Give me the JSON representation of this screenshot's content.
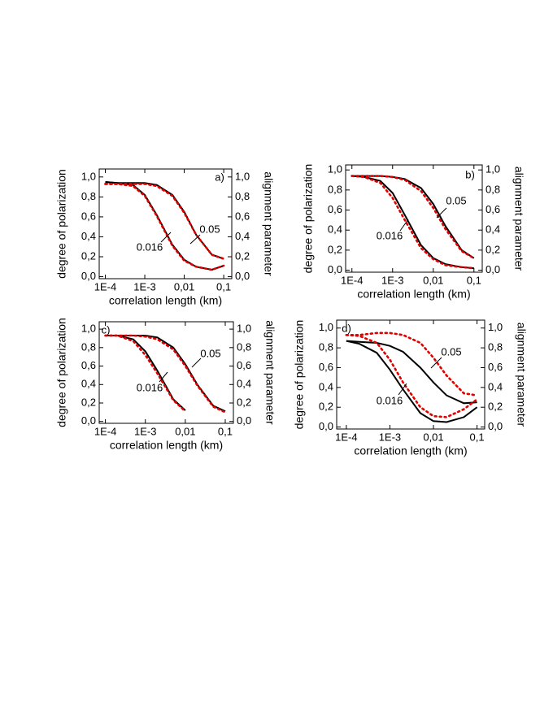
{
  "chart_data": [
    {
      "type": "line",
      "panel_label": "a)",
      "curve_labels": [
        "0.05",
        "0.016"
      ],
      "xlabel": "correlation length (km)",
      "ylabel": "degree of polarization",
      "y2label": "alignment parameter",
      "xscale": "log",
      "x": [
        0.0001,
        0.0002,
        0.0005,
        0.001,
        0.002,
        0.005,
        0.01,
        0.02,
        0.05,
        0.1
      ],
      "xlim": [
        7e-05,
        0.16
      ],
      "xticks": [
        {
          "value": 0.0001,
          "label": "1E-4"
        },
        {
          "value": 0.001,
          "label": "1E-3"
        },
        {
          "value": 0.01,
          "label": "0,01"
        },
        {
          "value": 0.1,
          "label": "0,1"
        }
      ],
      "ylim": [
        -0.02,
        1.08
      ],
      "yticks": [
        {
          "value": 0,
          "label": "0,0"
        },
        {
          "value": 0.2,
          "label": "0,2"
        },
        {
          "value": 0.4,
          "label": "0,4"
        },
        {
          "value": 0.6,
          "label": "0,6"
        },
        {
          "value": 0.8,
          "label": "0,8"
        },
        {
          "value": 1,
          "label": "1,0"
        }
      ],
      "y2lim": [
        -0.02,
        1.08
      ],
      "y2ticks": [
        {
          "value": 0,
          "label": "0,0"
        },
        {
          "value": 0.2,
          "label": "0,2"
        },
        {
          "value": 0.4,
          "label": "0,4"
        },
        {
          "value": 0.6,
          "label": "0,6"
        },
        {
          "value": 0.8,
          "label": "0,8"
        },
        {
          "value": 1,
          "label": "1,0"
        }
      ],
      "series": [
        {
          "color": "#000000",
          "style": "solid",
          "values": [
            0.95,
            0.94,
            0.94,
            0.94,
            0.92,
            0.82,
            0.65,
            0.42,
            0.22,
            0.18
          ]
        },
        {
          "color": "#000000",
          "style": "solid",
          "values": [
            0.95,
            0.94,
            0.92,
            0.82,
            0.62,
            0.32,
            0.17,
            0.1,
            0.07,
            0.11
          ]
        },
        {
          "color": "#e00000",
          "style": "dotted",
          "axis": "y2",
          "values": [
            0.93,
            0.93,
            0.93,
            0.93,
            0.91,
            0.81,
            0.64,
            0.42,
            0.22,
            0.18
          ]
        },
        {
          "color": "#e00000",
          "style": "dotted",
          "axis": "y2",
          "values": [
            0.93,
            0.93,
            0.91,
            0.81,
            0.61,
            0.31,
            0.16,
            0.1,
            0.07,
            0.11
          ]
        }
      ]
    },
    {
      "type": "line",
      "panel_label": "b)",
      "curve_labels": [
        "0.05",
        "0.016"
      ],
      "xlabel": "correlation length (km)",
      "ylabel": "degree of polarization",
      "y2label": "alignment parameter",
      "xscale": "log",
      "x": [
        0.0001,
        0.0002,
        0.0005,
        0.001,
        0.002,
        0.005,
        0.01,
        0.02,
        0.05,
        0.1
      ],
      "xlim": [
        7e-05,
        0.16
      ],
      "xticks": [
        {
          "value": 0.0001,
          "label": "1E-4"
        },
        {
          "value": 0.001,
          "label": "1E-3"
        },
        {
          "value": 0.01,
          "label": "0,01"
        },
        {
          "value": 0.1,
          "label": "0,1"
        }
      ],
      "ylim": [
        -0.02,
        1.05
      ],
      "yticks": [
        {
          "value": 0,
          "label": "0,0"
        },
        {
          "value": 0.2,
          "label": "0,2"
        },
        {
          "value": 0.4,
          "label": "0,4"
        },
        {
          "value": 0.6,
          "label": "0,6"
        },
        {
          "value": 0.8,
          "label": "0,8"
        },
        {
          "value": 1,
          "label": "1,0"
        }
      ],
      "y2lim": [
        -0.02,
        1.05
      ],
      "y2ticks": [
        {
          "value": 0,
          "label": "0,0"
        },
        {
          "value": 0.2,
          "label": "0,2"
        },
        {
          "value": 0.4,
          "label": "0,4"
        },
        {
          "value": 0.6,
          "label": "0,6"
        },
        {
          "value": 0.8,
          "label": "0,8"
        },
        {
          "value": 1,
          "label": "1,0"
        }
      ],
      "series": [
        {
          "color": "#000000",
          "style": "solid",
          "values": [
            0.94,
            0.94,
            0.94,
            0.93,
            0.91,
            0.82,
            0.66,
            0.44,
            0.2,
            0.12
          ]
        },
        {
          "color": "#000000",
          "style": "solid",
          "values": [
            0.94,
            0.93,
            0.89,
            0.77,
            0.55,
            0.25,
            0.12,
            0.06,
            0.03,
            0.02
          ]
        },
        {
          "color": "#e00000",
          "style": "dotted",
          "axis": "y2",
          "values": [
            0.94,
            0.94,
            0.94,
            0.93,
            0.9,
            0.79,
            0.62,
            0.41,
            0.19,
            0.12
          ]
        },
        {
          "color": "#e00000",
          "style": "dotted",
          "axis": "y2",
          "values": [
            0.94,
            0.93,
            0.87,
            0.72,
            0.5,
            0.22,
            0.11,
            0.05,
            0.03,
            0.02
          ]
        }
      ]
    },
    {
      "type": "line",
      "panel_label": "c)",
      "curve_labels": [
        "0.05",
        "0.016"
      ],
      "xlabel": "correlation length (km)",
      "ylabel": "degree of polarization",
      "y2label": "alignment parameter",
      "xscale": "log",
      "x": [
        0.0001,
        0.0002,
        0.0005,
        0.001,
        0.002,
        0.005,
        0.01,
        0.02,
        0.05,
        0.1
      ],
      "xlim": [
        7e-05,
        0.16
      ],
      "xticks": [
        {
          "value": 0.0001,
          "label": "1E-4"
        },
        {
          "value": 0.001,
          "label": "1E-3"
        },
        {
          "value": 0.01,
          "label": "0,01"
        },
        {
          "value": 0.1,
          "label": "0,1"
        }
      ],
      "ylim": [
        -0.02,
        1.08
      ],
      "yticks": [
        {
          "value": 0,
          "label": "0,0"
        },
        {
          "value": 0.2,
          "label": "0,2"
        },
        {
          "value": 0.4,
          "label": "0,4"
        },
        {
          "value": 0.6,
          "label": "0,6"
        },
        {
          "value": 0.8,
          "label": "0,8"
        },
        {
          "value": 1,
          "label": "1,0"
        }
      ],
      "y2lim": [
        -0.02,
        1.08
      ],
      "y2ticks": [
        {
          "value": 0,
          "label": "0,0"
        },
        {
          "value": 0.2,
          "label": "0,2"
        },
        {
          "value": 0.4,
          "label": "0,4"
        },
        {
          "value": 0.6,
          "label": "0,6"
        },
        {
          "value": 0.8,
          "label": "0,8"
        },
        {
          "value": 1,
          "label": "1,0"
        }
      ],
      "series": [
        {
          "color": "#000000",
          "style": "solid",
          "values": [
            0.93,
            0.93,
            0.93,
            0.93,
            0.91,
            0.8,
            0.62,
            0.4,
            0.17,
            0.11
          ]
        },
        {
          "color": "#000000",
          "style": "solid",
          "values": [
            0.93,
            0.93,
            0.89,
            0.76,
            0.55,
            0.24,
            0.12,
            null,
            null,
            null
          ]
        },
        {
          "color": "#e00000",
          "style": "dotted",
          "axis": "y2",
          "values": [
            0.93,
            0.93,
            0.93,
            0.92,
            0.89,
            0.78,
            0.6,
            0.39,
            0.16,
            0.1
          ]
        },
        {
          "color": "#e00000",
          "style": "dotted",
          "axis": "y2",
          "values": [
            0.93,
            0.93,
            0.87,
            0.72,
            0.52,
            0.23,
            0.11,
            null,
            null,
            null
          ]
        }
      ]
    },
    {
      "type": "line",
      "panel_label": "d)",
      "curve_labels": [
        "0.05",
        "0.016"
      ],
      "xlabel": "correlation length (km)",
      "ylabel": "degree of polarization",
      "y2label": "alignment parameter",
      "xscale": "log",
      "x": [
        0.0001,
        0.0002,
        0.0005,
        0.001,
        0.002,
        0.005,
        0.01,
        0.02,
        0.05,
        0.1
      ],
      "xlim": [
        6e-05,
        0.15
      ],
      "xticks": [
        {
          "value": 0.0001,
          "label": "1E-4"
        },
        {
          "value": 0.001,
          "label": "1E-3"
        },
        {
          "value": 0.01,
          "label": "0,01"
        },
        {
          "value": 0.1,
          "label": "0,1"
        }
      ],
      "ylim": [
        -0.02,
        1.08
      ],
      "yticks": [
        {
          "value": 0,
          "label": "0,0"
        },
        {
          "value": 0.2,
          "label": "0,2"
        },
        {
          "value": 0.4,
          "label": "0,4"
        },
        {
          "value": 0.6,
          "label": "0,6"
        },
        {
          "value": 0.8,
          "label": "0,8"
        },
        {
          "value": 1,
          "label": "1,0"
        }
      ],
      "y2lim": [
        -0.02,
        1.08
      ],
      "y2ticks": [
        {
          "value": 0,
          "label": "0,0"
        },
        {
          "value": 0.2,
          "label": "0,2"
        },
        {
          "value": 0.4,
          "label": "0,4"
        },
        {
          "value": 0.6,
          "label": "0,6"
        },
        {
          "value": 0.8,
          "label": "0,8"
        },
        {
          "value": 1,
          "label": "1,0"
        }
      ],
      "series": [
        {
          "color": "#000000",
          "style": "solid",
          "values": [
            0.87,
            0.86,
            0.85,
            0.82,
            0.76,
            0.6,
            0.45,
            0.32,
            0.24,
            0.25
          ]
        },
        {
          "color": "#000000",
          "style": "solid",
          "values": [
            0.87,
            0.84,
            0.75,
            0.58,
            0.38,
            0.14,
            0.06,
            0.05,
            0.1,
            0.2
          ]
        },
        {
          "color": "#e00000",
          "style": "dotted",
          "axis": "y2",
          "values": [
            0.93,
            0.93,
            0.95,
            0.95,
            0.93,
            0.85,
            0.7,
            0.52,
            0.34,
            0.32
          ]
        },
        {
          "color": "#e00000",
          "style": "dotted",
          "axis": "y2",
          "values": [
            0.93,
            0.92,
            0.85,
            0.68,
            0.45,
            0.2,
            0.11,
            0.1,
            0.18,
            0.28
          ]
        }
      ]
    }
  ]
}
